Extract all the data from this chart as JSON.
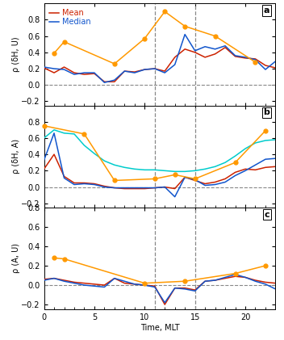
{
  "hours": [
    0,
    1,
    2,
    3,
    4,
    5,
    6,
    7,
    8,
    9,
    10,
    11,
    12,
    13,
    14,
    15,
    16,
    17,
    18,
    19,
    20,
    21,
    22,
    23
  ],
  "panel_a_mean": [
    0.21,
    0.15,
    0.22,
    0.15,
    0.13,
    0.14,
    0.04,
    0.04,
    0.17,
    0.16,
    0.19,
    0.2,
    0.17,
    0.34,
    0.44,
    0.4,
    0.34,
    0.38,
    0.46,
    0.35,
    0.33,
    0.32,
    0.24,
    0.21
  ],
  "panel_a_median": [
    0.22,
    0.2,
    0.19,
    0.13,
    0.15,
    0.15,
    0.03,
    0.06,
    0.17,
    0.15,
    0.19,
    0.2,
    0.15,
    0.25,
    0.62,
    0.42,
    0.47,
    0.44,
    0.48,
    0.36,
    0.34,
    0.31,
    0.19,
    0.29
  ],
  "panel_a_orange": [
    null,
    0.39,
    0.53,
    null,
    null,
    null,
    null,
    0.26,
    null,
    null,
    0.57,
    null,
    0.9,
    null,
    0.72,
    null,
    null,
    0.6,
    null,
    null,
    null,
    0.28,
    null,
    null
  ],
  "panel_b_mean": [
    0.22,
    0.4,
    0.13,
    0.05,
    0.05,
    0.04,
    0.01,
    -0.01,
    -0.02,
    -0.02,
    -0.02,
    -0.01,
    0.0,
    -0.02,
    0.12,
    0.08,
    0.04,
    0.06,
    0.1,
    0.18,
    0.22,
    0.21,
    0.24,
    0.25
  ],
  "panel_b_median": [
    0.33,
    0.66,
    0.11,
    0.03,
    0.04,
    0.03,
    0.0,
    -0.01,
    -0.01,
    -0.01,
    -0.01,
    -0.01,
    0.0,
    -0.12,
    0.12,
    0.09,
    0.02,
    0.03,
    0.06,
    0.14,
    0.2,
    0.27,
    0.34,
    0.35
  ],
  "panel_b_cyan": [
    0.6,
    0.7,
    0.66,
    0.65,
    0.51,
    0.41,
    0.32,
    0.27,
    0.24,
    0.22,
    0.21,
    0.21,
    0.2,
    0.19,
    0.19,
    0.2,
    0.22,
    0.25,
    0.3,
    0.38,
    0.47,
    0.54,
    0.57,
    0.58
  ],
  "panel_b_orange": [
    0.75,
    null,
    null,
    null,
    0.65,
    null,
    null,
    0.08,
    null,
    null,
    null,
    0.1,
    null,
    0.15,
    null,
    0.1,
    null,
    null,
    null,
    0.3,
    null,
    null,
    0.69,
    null
  ],
  "panel_c_mean": [
    0.06,
    0.07,
    0.05,
    0.03,
    0.02,
    0.01,
    0.0,
    0.07,
    0.02,
    0.01,
    0.0,
    -0.01,
    -0.2,
    -0.03,
    -0.03,
    -0.05,
    0.04,
    0.05,
    0.07,
    0.09,
    0.08,
    0.05,
    0.03,
    0.02
  ],
  "panel_c_median": [
    0.05,
    0.07,
    0.04,
    0.02,
    0.0,
    -0.01,
    -0.02,
    0.07,
    0.04,
    0.01,
    0.0,
    -0.02,
    -0.18,
    -0.03,
    -0.04,
    -0.06,
    0.04,
    0.05,
    0.08,
    0.11,
    0.08,
    0.04,
    0.01,
    -0.04
  ],
  "panel_c_orange": [
    null,
    0.28,
    0.27,
    null,
    null,
    null,
    null,
    null,
    null,
    null,
    0.02,
    null,
    null,
    null,
    0.04,
    null,
    null,
    null,
    null,
    0.12,
    null,
    null,
    0.2,
    null
  ],
  "vlines": [
    11,
    15
  ],
  "color_mean": "#cc2200",
  "color_median": "#1155cc",
  "color_orange": "#ff9900",
  "color_cyan": "#00cccc",
  "color_dashed_h": "#888888",
  "color_vline": "#888888",
  "ylabel_a": "ρ (δH, U)",
  "ylabel_b": "ρ (δH, A)",
  "ylabel_c": "ρ (A, U)",
  "xlabel": "Time, MLT",
  "ylim_a": [
    -0.25,
    1.0
  ],
  "ylim_b": [
    -0.25,
    1.0
  ],
  "ylim_c": [
    -0.25,
    0.5
  ],
  "yticks_a": [
    -0.2,
    0.0,
    0.2,
    0.4,
    0.6,
    0.8
  ],
  "yticks_b": [
    -0.2,
    0.0,
    0.2,
    0.4,
    0.6,
    0.8
  ],
  "yticks_c": [
    -0.2,
    0.0,
    0.2,
    0.4,
    0.6,
    0.8
  ],
  "xticks": [
    0,
    5,
    10,
    15,
    20
  ],
  "xlim": [
    0,
    23
  ],
  "legend_labels": [
    "Mean",
    "Median"
  ],
  "panel_labels": [
    "a",
    "b",
    "c"
  ]
}
